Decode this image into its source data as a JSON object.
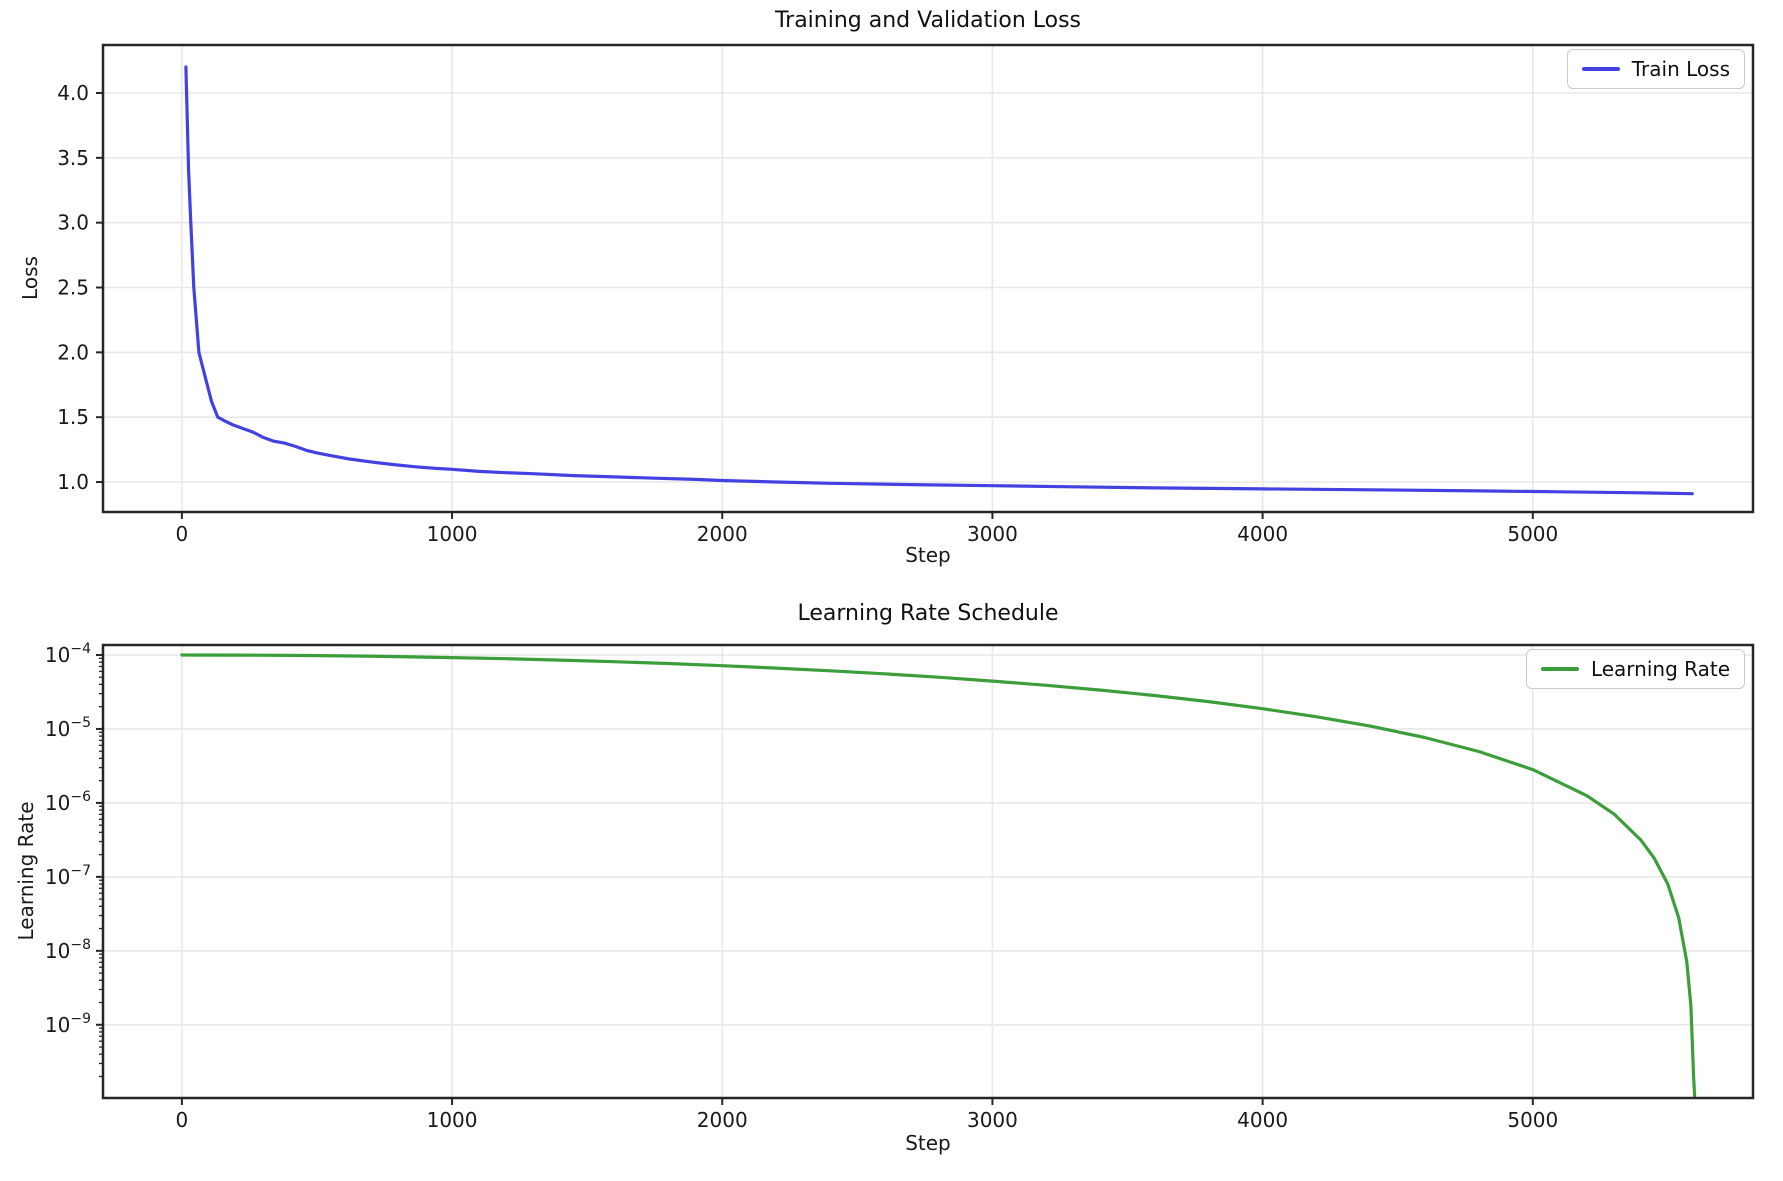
{
  "figure": {
    "background": "#ffffff",
    "text_color": "#1a1a1a",
    "grid_color": "#e8e8e8",
    "spine_color": "#262626"
  },
  "chart_data": [
    {
      "id": "train-loss",
      "type": "line",
      "title": "Training and Validation Loss",
      "xlabel": "Step",
      "ylabel": "Loss",
      "yscale": "linear",
      "grid": true,
      "legend": {
        "label": "Train Loss",
        "position": "upper right"
      },
      "line_color": "#4341e0",
      "xlim": [
        -292,
        5815
      ],
      "ylim": [
        0.769,
        4.37
      ],
      "xticks": [
        0,
        1000,
        2000,
        3000,
        4000,
        5000
      ],
      "xtick_labels": [
        "0",
        "1000",
        "2000",
        "3000",
        "4000",
        "5000"
      ],
      "yticks": [
        1.0,
        1.5,
        2.0,
        2.5,
        3.0,
        3.5,
        4.0
      ],
      "ytick_labels": [
        "1.0",
        "1.5",
        "2.0",
        "2.5",
        "3.0",
        "3.5",
        "4.0"
      ],
      "series": [
        {
          "name": "Train Loss",
          "x": [
            15,
            25,
            33,
            44,
            63,
            90,
            110,
            133,
            160,
            190,
            230,
            263,
            300,
            340,
            380,
            420,
            460,
            500,
            560,
            620,
            700,
            780,
            860,
            940,
            1000,
            1100,
            1200,
            1300,
            1450,
            1600,
            1750,
            1900,
            2000,
            2200,
            2400,
            2700,
            3000,
            3300,
            3600,
            4000,
            4400,
            4800,
            5100,
            5400,
            5590
          ],
          "y": [
            4.2,
            3.4,
            3.0,
            2.5,
            2.0,
            1.78,
            1.62,
            1.5,
            1.47,
            1.44,
            1.41,
            1.385,
            1.345,
            1.315,
            1.3,
            1.275,
            1.245,
            1.225,
            1.2,
            1.178,
            1.155,
            1.135,
            1.118,
            1.105,
            1.098,
            1.082,
            1.072,
            1.064,
            1.05,
            1.04,
            1.03,
            1.02,
            1.012,
            1.0,
            0.99,
            0.98,
            0.972,
            0.963,
            0.955,
            0.947,
            0.94,
            0.932,
            0.925,
            0.917,
            0.91
          ]
        }
      ]
    },
    {
      "id": "learning-rate",
      "type": "line",
      "title": "Learning Rate Schedule",
      "xlabel": "Step",
      "ylabel": "Learning Rate",
      "yscale": "log",
      "grid": true,
      "legend": {
        "label": "Learning Rate",
        "position": "upper right"
      },
      "line_color": "#3b9e3b",
      "xlim": [
        -292,
        5815
      ],
      "ylim_exp": [
        -9.99,
        -3.865
      ],
      "xticks": [
        0,
        1000,
        2000,
        3000,
        4000,
        5000
      ],
      "xtick_labels": [
        "0",
        "1000",
        "2000",
        "3000",
        "4000",
        "5000"
      ],
      "ytick_exponents": [
        -4,
        -5,
        -6,
        -7,
        -8,
        -9
      ],
      "series": [
        {
          "name": "Learning Rate",
          "x": [
            0,
            200,
            400,
            600,
            800,
            1000,
            1200,
            1400,
            1600,
            1800,
            2000,
            2200,
            2400,
            2600,
            2800,
            3000,
            3200,
            3400,
            3600,
            3800,
            4000,
            4200,
            4400,
            4600,
            4800,
            5000,
            5200,
            5300,
            5400,
            5450,
            5500,
            5540,
            5570,
            5585,
            5595,
            5599
          ],
          "y": [
            0.0001,
            9.97e-05,
            9.87e-05,
            9.72e-05,
            9.5e-05,
            9.23e-05,
            8.91e-05,
            8.54e-05,
            8.12e-05,
            7.66e-05,
            7.17e-05,
            6.65e-05,
            6.11e-05,
            5.56e-05,
            5e-05,
            4.44e-05,
            3.89e-05,
            3.35e-05,
            2.83e-05,
            2.34e-05,
            1.88e-05,
            1.46e-05,
            1.09e-05,
            7.65e-06,
            4.95e-06,
            2.82e-06,
            1.25e-06,
            7.1e-07,
            3.14e-07,
            1.77e-07,
            7.9e-08,
            2.8e-08,
            7.1e-09,
            1.8e-09,
            2e-10,
            1.1e-10
          ]
        }
      ]
    }
  ]
}
